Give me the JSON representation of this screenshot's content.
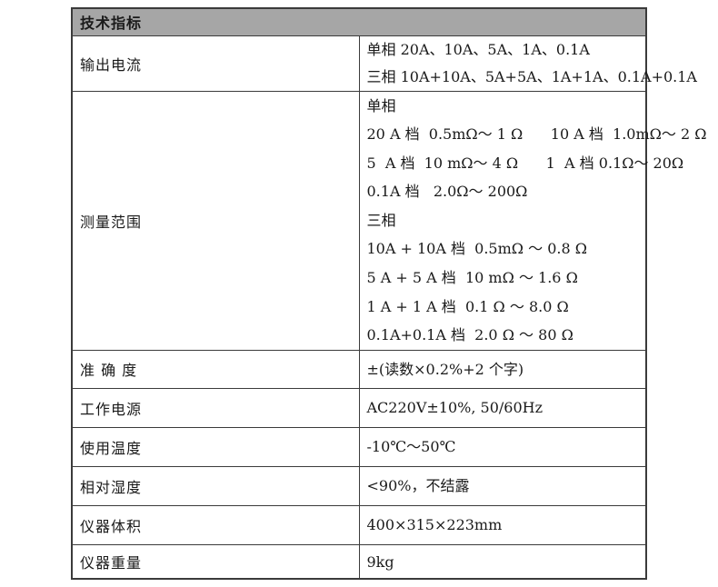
{
  "colors": {
    "header-bg": "#a6a6a6",
    "border-color": "#3b3b3b",
    "text-color": "#1a1a1a",
    "page-bg": "#ffffff"
  },
  "table": {
    "header": "技术指标",
    "rows": [
      {
        "label": "输出电流",
        "lines": [
          "单相 20A、10A、5A、1A、0.1A",
          "三相 10A+10A、5A+5A、1A+1A、0.1A+0.1A"
        ]
      },
      {
        "label": "测量范围",
        "lines": [
          "单相",
          "20 A 档  0.5mΩ～ 1 Ω      10 A 档  1.0mΩ～ 2 Ω",
          "5  A 档  10 mΩ～ 4 Ω      1  A 档 0.1Ω～ 20Ω",
          "0.1A 档   2.0Ω～ 200Ω",
          "三相",
          "10A + 10A 档  0.5mΩ ～ 0.8 Ω",
          "5 A + 5 A 档  10 mΩ ～ 1.6 Ω",
          "1 A + 1 A 档  0.1 Ω ～ 8.0 Ω",
          "0.1A+0.1A 档  2.0 Ω ～ 80 Ω"
        ]
      },
      {
        "label": "准 确 度",
        "lines": [
          "±(读数×0.2%+2 个字)"
        ]
      },
      {
        "label": "工作电源",
        "lines": [
          "AC220V±10%, 50/60Hz"
        ]
      },
      {
        "label": "使用温度",
        "lines": [
          "-10℃～50℃"
        ]
      },
      {
        "label": "相对湿度",
        "lines": [
          "<90%，不结露"
        ]
      },
      {
        "label": "仪器体积",
        "lines": [
          "400×315×223mm"
        ]
      },
      {
        "label": "仪器重量",
        "lines": [
          "9kg"
        ]
      }
    ]
  }
}
